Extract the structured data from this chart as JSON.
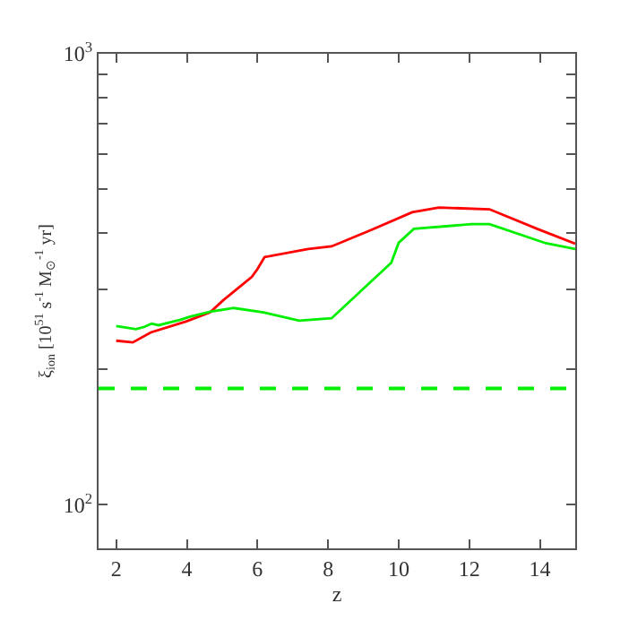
{
  "chart_data": {
    "type": "line",
    "xlabel": "z",
    "ylabel": "ξ$_{ion}$ [10$^{51}$ s$^{-1}$ M$_{⊙}$$^{-1}$ yr]",
    "log": "y",
    "marker": "none",
    "line_style": "solid",
    "xlim": [
      1.5,
      15
    ],
    "xticks": [
      2,
      4,
      6,
      8,
      10,
      12,
      14
    ],
    "ylim": [
      80,
      1000
    ],
    "yticks": [
      {
        "value": 100,
        "label": "10$^{2}$"
      },
      {
        "value": 200,
        "label": null
      },
      {
        "value": 300,
        "label": null
      },
      {
        "value": 400,
        "label": null
      },
      {
        "value": 500,
        "label": null
      },
      {
        "value": 600,
        "label": null
      },
      {
        "value": 700,
        "label": null
      },
      {
        "value": 800,
        "label": null
      },
      {
        "value": 900,
        "label": null
      },
      {
        "value": 1000,
        "label": "10$^{3}$"
      }
    ],
    "ref_lines": [
      {
        "axis": "y",
        "value": 181,
        "label": null,
        "color": "#00ee00",
        "line_style": "dashed"
      }
    ],
    "series": [
      {
        "color": "#ff0000",
        "x": [
          2,
          2.47,
          2.98,
          3.99,
          4.66,
          5.03,
          5.84,
          6.0,
          6.2,
          7.44,
          8.1,
          9.2,
          10.38,
          11.14,
          12.57,
          13.92,
          15
        ],
        "values": [
          231,
          229,
          241,
          255,
          267,
          284,
          320,
          333,
          354,
          369,
          374,
          406,
          445,
          456,
          452,
          409,
          379
        ]
      },
      {
        "color": "#00ee00",
        "x": [
          2,
          2.56,
          2.8,
          3.0,
          3.2,
          3.82,
          4.07,
          4.66,
          5.33,
          6.17,
          7.18,
          8.1,
          9.79,
          10.0,
          10.43,
          12.07,
          12.57,
          14.17,
          15
        ],
        "values": [
          249,
          245,
          248,
          252,
          250,
          257,
          261,
          268,
          273,
          267,
          256,
          259,
          344,
          381,
          409,
          419,
          419,
          380,
          369
        ]
      }
    ]
  }
}
